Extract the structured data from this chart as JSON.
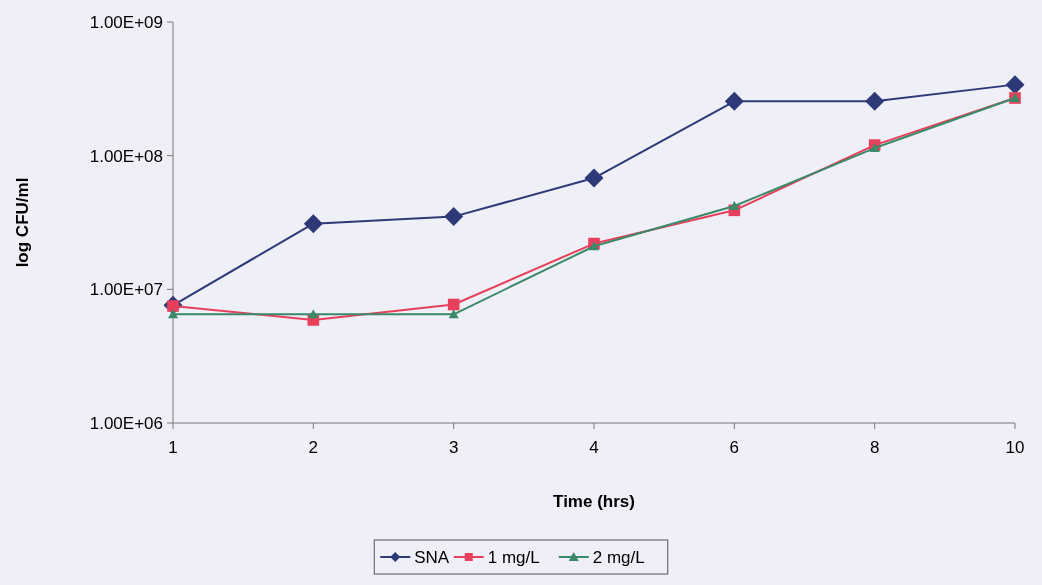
{
  "chart_data": {
    "type": "line",
    "xlabel": "Time (hrs)",
    "ylabel": "log CFU/ml",
    "categories": [
      "1",
      "2",
      "3",
      "4",
      "6",
      "8",
      "10"
    ],
    "series": [
      {
        "name": "SNA",
        "color": "#2e3a78",
        "marker": "diamond",
        "values": [
          7600000,
          31000000,
          35000000,
          68000000,
          255000000,
          255000000,
          340000000
        ]
      },
      {
        "name": "1 mg/L",
        "color": "#e8405a",
        "marker": "square",
        "values": [
          7500000,
          5900000,
          7700000,
          22000000,
          39000000,
          120000000,
          270000000
        ]
      },
      {
        "name": "2 mg/L",
        "color": "#3a8a6a",
        "marker": "triangle",
        "values": [
          6500000,
          6500000,
          6500000,
          21000000,
          42000000,
          114000000,
          270000000
        ]
      }
    ],
    "log": "y",
    "ylim": [
      1000000,
      1000000000
    ],
    "yticks": [
      {
        "value": 1000000,
        "label": "1.00E+06"
      },
      {
        "value": 10000000,
        "label": "1.00E+07"
      },
      {
        "value": 100000000,
        "label": "1.00E+08"
      },
      {
        "value": 1000000000,
        "label": "1.00E+09"
      }
    ],
    "grid": false,
    "legend": "bottom",
    "line_style": "solid"
  }
}
